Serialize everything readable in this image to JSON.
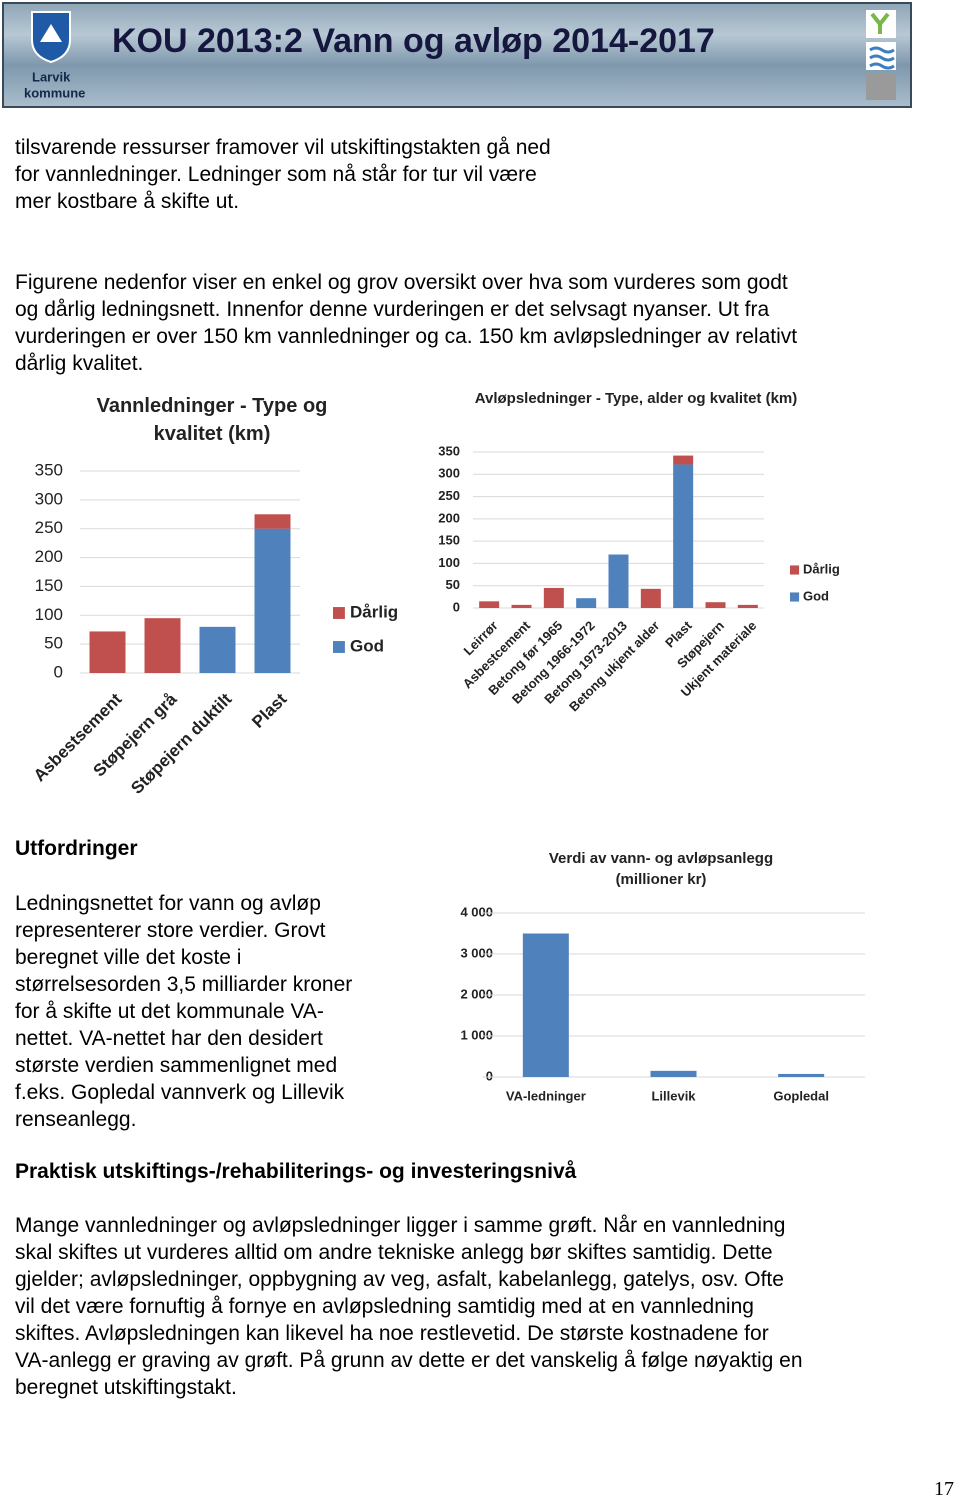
{
  "header": {
    "title": "KOU 2013:2 Vann og avløp 2014-2017",
    "logo_text": [
      "Larvik",
      "kommune"
    ]
  },
  "paragraphs": [
    [
      "tilsvarende ressurser framover vil utskiftingstakten gå ned",
      "for vannledninger. Ledninger som nå står for tur vil være",
      "mer kostbare å skifte ut."
    ],
    [
      "Figurene nedenfor viser en enkel og grov oversikt over hva som vurderes som godt",
      "og dårlig ledningsnett. Innenfor denne vurderingen er det selvsagt nyanser. Ut fra",
      "vurderingen er over 150 km vannledninger og ca. 150 km avløpsledninger av relativt",
      "dårlig kvalitet."
    ],
    [
      "Ledningsnettet for vann og avløp",
      "representerer store verdier. Grovt",
      "beregnet ville det koste i",
      "størrelsesorden 3,5 milliarder kroner",
      "for å skifte ut det kommunale VA-",
      "nettet. VA-nettet har den desidert",
      "største verdien sammenlignet med",
      "f.eks. Gopledal vannverk og Lillevik",
      "renseanlegg."
    ],
    [
      "Mange vannledninger og avløpsledninger ligger i samme grøft. Når en vannledning",
      "skal skiftes ut vurderes alltid om andre tekniske anlegg bør skiftes samtidig. Dette",
      "gjelder; avløpsledninger, oppbygning av veg, asfalt, kabelanlegg, gatelys, osv. Ofte",
      "vil det være fornuftig å fornye en avløpsledning samtidig med at en vannledning",
      "skiftes. Avløpsledningen kan likevel ha noe restlevetid. De største kostnadene for",
      "VA-anlegg er graving av grøft. På grunn av dette er det vanskelig å følge nøyaktig en",
      "beregnet utskiftingstakt."
    ]
  ],
  "headings": [
    "Utfordringer",
    "Praktisk utskiftings-/rehabiliterings- og investeringsnivå"
  ],
  "chart_data": [
    {
      "type": "stacked_bar",
      "title": "Vannledninger - Type og kvalitet (km)",
      "categories": [
        "Asbestsement",
        "Støpejern grå",
        "Støpejern duktilt",
        "Plast"
      ],
      "series": [
        {
          "name": "Dårlig",
          "color": "#c0504d",
          "values": [
            72,
            95,
            0,
            25
          ]
        },
        {
          "name": "God",
          "color": "#4f81bd",
          "values": [
            0,
            0,
            80,
            250
          ]
        }
      ],
      "ylim": [
        0,
        350
      ],
      "yticks": [
        0,
        50,
        100,
        150,
        200,
        250,
        300,
        350
      ],
      "grid": true,
      "legend": "right"
    },
    {
      "type": "stacked_bar",
      "title": "Avløpsledninger - Type, alder og kvalitet (km)",
      "categories": [
        "Leirrør",
        "Asbestcement",
        "Betong før 1965",
        "Betong 1966-1972",
        "Betong 1973-2013",
        "Betong ukjent alder",
        "Plast",
        "Støpejern",
        "Ukjent materiale"
      ],
      "series": [
        {
          "name": "Dårlig",
          "color": "#c0504d",
          "values": [
            15,
            7,
            45,
            0,
            0,
            43,
            20,
            13,
            7
          ]
        },
        {
          "name": "God",
          "color": "#4f81bd",
          "values": [
            0,
            0,
            0,
            22,
            120,
            0,
            322,
            0,
            0
          ]
        }
      ],
      "ylim": [
        0,
        350
      ],
      "yticks": [
        0,
        50,
        100,
        150,
        200,
        250,
        300,
        350
      ],
      "grid": true,
      "legend": "right"
    },
    {
      "type": "bar",
      "title": "Verdi av vann- og avløpsanlegg (millioner kr)",
      "categories": [
        "VA-ledninger",
        "Lillevik",
        "Gopledal"
      ],
      "values": [
        3500,
        150,
        75
      ],
      "color": "#4f81bd",
      "ylim": [
        0,
        4000
      ],
      "yticks": [
        0,
        {
          "value": 1000,
          "label": "1 000"
        },
        {
          "value": 2000,
          "label": "2 000"
        },
        {
          "value": 3000,
          "label": "3 000"
        },
        {
          "value": 4000,
          "label": "4 000"
        }
      ],
      "grid": true
    }
  ],
  "page_number": "17"
}
